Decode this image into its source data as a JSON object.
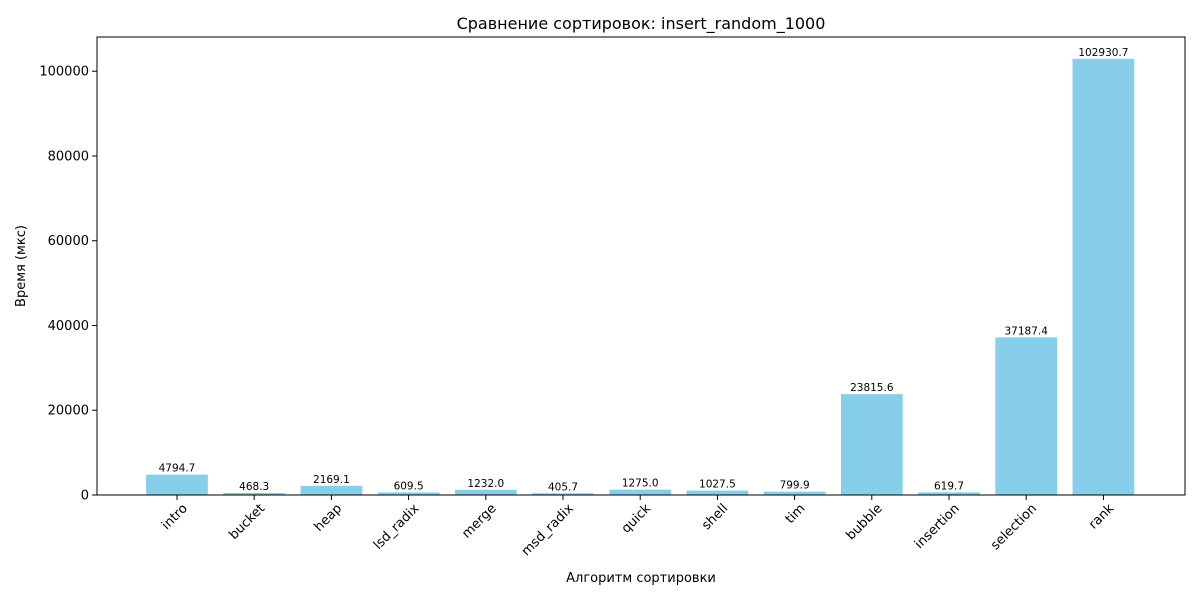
{
  "chart_data": {
    "type": "bar",
    "title": "Сравнение сортировок: insert_random_1000",
    "xlabel": "Алгоритм сортировки",
    "ylabel": "Время (мкс)",
    "categories": [
      "intro",
      "bucket",
      "heap",
      "lsd_radix",
      "merge",
      "msd_radix",
      "quick",
      "shell",
      "tim",
      "bubble",
      "insertion",
      "selection",
      "rank"
    ],
    "values": [
      4794.7,
      468.3,
      2169.1,
      609.5,
      1232.0,
      405.7,
      1275.0,
      1027.5,
      799.9,
      23815.6,
      619.7,
      37187.4,
      102930.7
    ],
    "value_labels": [
      "4794.7",
      "468.3",
      "2169.1",
      "609.5",
      "1232.0",
      "405.7",
      "1275.0",
      "1027.5",
      "799.9",
      "23815.6",
      "619.7",
      "37187.4",
      "102930.7"
    ],
    "yticks": [
      0,
      20000,
      40000,
      60000,
      80000,
      100000
    ],
    "ylim": [
      0,
      108077.7
    ],
    "bar_color": "#87ceeb",
    "grid": false,
    "legend": "none"
  }
}
